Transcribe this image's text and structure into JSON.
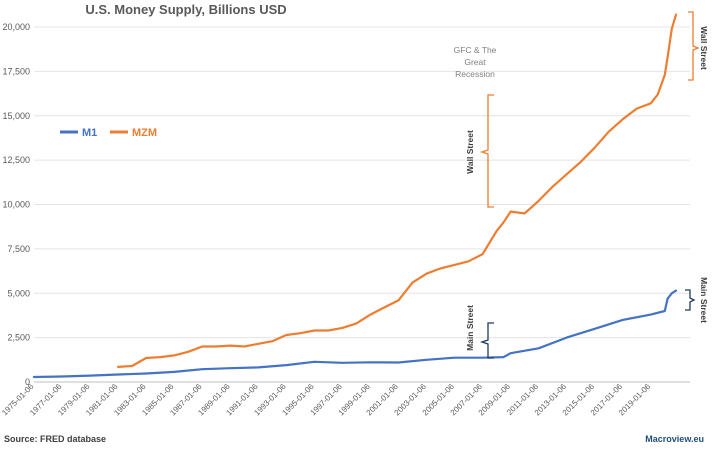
{
  "chart_data": {
    "type": "line",
    "title": "U.S. Money Supply, Billions USD",
    "ylim": [
      0,
      20000
    ],
    "y_ticks": [
      "0",
      "2,500",
      "5,000",
      "7,500",
      "10,000",
      "12,500",
      "15,000",
      "17,500",
      "20,000"
    ],
    "y_tick_values": [
      0,
      2500,
      5000,
      7500,
      10000,
      12500,
      15000,
      17500,
      20000
    ],
    "x_start": 1975.0,
    "x_end": 2021.8,
    "x_ticks": [
      "1975-01-06",
      "1977-01-06",
      "1979-01-06",
      "1981-01-06",
      "1983-01-06",
      "1985-01-06",
      "1987-01-06",
      "1989-01-06",
      "1991-01-06",
      "1993-01-06",
      "1995-01-06",
      "1997-01-06",
      "1999-01-06",
      "2001-01-06",
      "2003-01-06",
      "2005-01-06",
      "2007-01-06",
      "2009-01-06",
      "2011-01-06",
      "2013-01-06",
      "2015-01-06",
      "2017-01-06",
      "2019-01-06"
    ],
    "grid": true,
    "legend_position": "left",
    "series": [
      {
        "name": "M1",
        "color": "#4472c4",
        "x": [
          1975.0,
          1977.0,
          1979.0,
          1981.0,
          1983.0,
          1985.0,
          1987.0,
          1989.0,
          1991.0,
          1993.0,
          1995.0,
          1997.0,
          1999.0,
          2001.0,
          2003.0,
          2005.0,
          2007.0,
          2008.5,
          2009.0,
          2011.0,
          2013.0,
          2015.0,
          2017.0,
          2019.0,
          2020.0,
          2020.2,
          2020.5,
          2020.8
        ],
        "values": [
          280,
          310,
          360,
          420,
          480,
          570,
          720,
          780,
          820,
          950,
          1140,
          1080,
          1110,
          1100,
          1250,
          1370,
          1370,
          1400,
          1620,
          1900,
          2500,
          3000,
          3500,
          3800,
          4000,
          4700,
          5000,
          5150
        ]
      },
      {
        "name": "MZM",
        "color": "#ed7d31",
        "x": [
          1981.0,
          1982.0,
          1983.0,
          1984.0,
          1985.0,
          1986.0,
          1987.0,
          1988.0,
          1989.0,
          1990.0,
          1991.0,
          1992.0,
          1993.0,
          1994.0,
          1995.0,
          1996.0,
          1997.0,
          1998.0,
          1999.0,
          2000.0,
          2001.0,
          2002.0,
          2003.0,
          2004.0,
          2005.0,
          2006.0,
          2007.0,
          2008.0,
          2008.5,
          2009.0,
          2010.0,
          2011.0,
          2012.0,
          2013.0,
          2014.0,
          2015.0,
          2016.0,
          2017.0,
          2018.0,
          2019.0,
          2019.5,
          2020.0,
          2020.2,
          2020.5,
          2020.8
        ],
        "values": [
          850,
          900,
          1350,
          1400,
          1500,
          1700,
          2000,
          2000,
          2050,
          2000,
          2150,
          2300,
          2650,
          2750,
          2900,
          2900,
          3050,
          3300,
          3800,
          4200,
          4600,
          5600,
          6100,
          6400,
          6600,
          6800,
          7200,
          8500,
          9000,
          9600,
          9500,
          10200,
          11000,
          11700,
          12400,
          13200,
          14100,
          14800,
          15400,
          15700,
          16200,
          17300,
          18300,
          19900,
          20700
        ]
      }
    ],
    "annotations": {
      "gfc_line1": "GFC & The",
      "gfc_line2": "Great",
      "gfc_line3": "Recession",
      "wall_street": "Wall Street",
      "main_street": "Main Street"
    }
  },
  "footer": {
    "source": "Source: FRED database",
    "credit": "Macroview.eu"
  }
}
